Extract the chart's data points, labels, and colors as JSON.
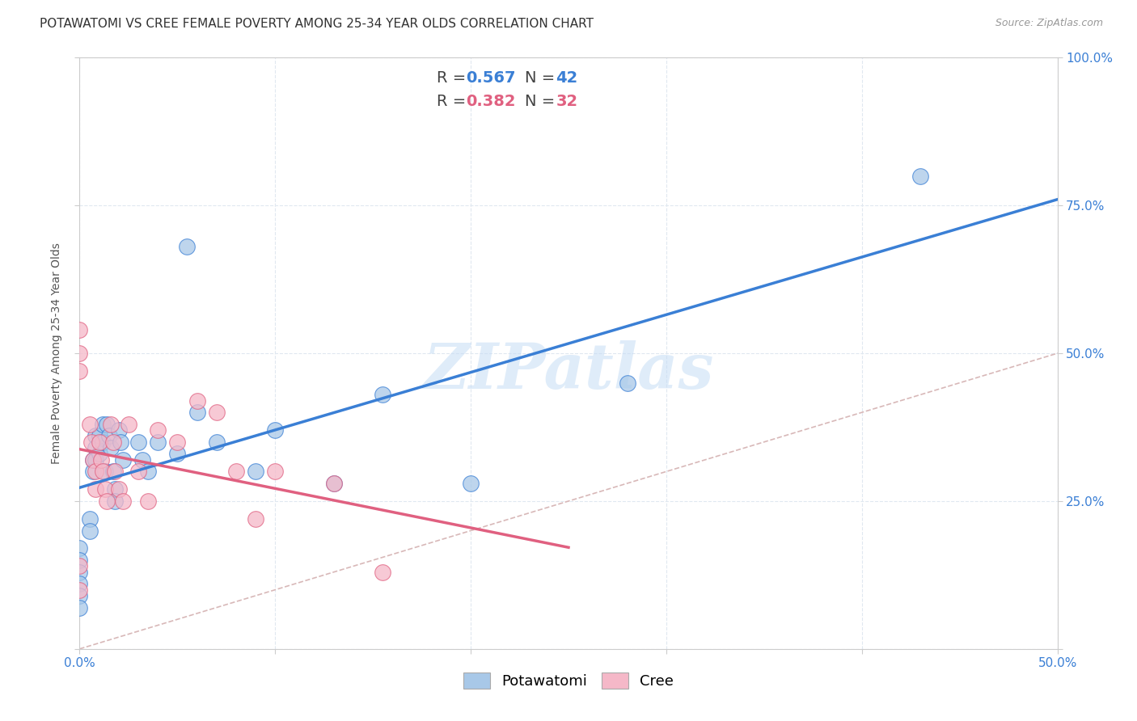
{
  "title": "POTAWATOMI VS CREE FEMALE POVERTY AMONG 25-34 YEAR OLDS CORRELATION CHART",
  "source": "Source: ZipAtlas.com",
  "ylabel": "Female Poverty Among 25-34 Year Olds",
  "xlim": [
    0.0,
    0.5
  ],
  "ylim": [
    0.0,
    1.0
  ],
  "xticks": [
    0.0,
    0.1,
    0.2,
    0.3,
    0.4,
    0.5
  ],
  "xticklabels": [
    "0.0%",
    "",
    "",
    "",
    "",
    "50.0%"
  ],
  "yticks": [
    0.0,
    0.25,
    0.5,
    0.75,
    1.0
  ],
  "yticklabels_right": [
    "",
    "25.0%",
    "50.0%",
    "75.0%",
    "100.0%"
  ],
  "potawatomi_R": 0.567,
  "potawatomi_N": 42,
  "cree_R": 0.382,
  "cree_N": 32,
  "potawatomi_color": "#a8c8e8",
  "cree_color": "#f5b8c8",
  "regression_potawatomi_color": "#3a7fd5",
  "regression_cree_color": "#e06080",
  "diagonal_color": "#d8b8b8",
  "watermark": "ZIPatlas",
  "potawatomi_x": [
    0.0,
    0.0,
    0.0,
    0.0,
    0.0,
    0.0,
    0.005,
    0.005,
    0.007,
    0.007,
    0.008,
    0.008,
    0.008,
    0.01,
    0.01,
    0.012,
    0.012,
    0.013,
    0.014,
    0.015,
    0.016,
    0.017,
    0.018,
    0.018,
    0.02,
    0.021,
    0.022,
    0.03,
    0.032,
    0.035,
    0.04,
    0.05,
    0.055,
    0.06,
    0.07,
    0.09,
    0.1,
    0.13,
    0.155,
    0.2,
    0.28,
    0.43
  ],
  "potawatomi_y": [
    0.17,
    0.15,
    0.13,
    0.11,
    0.09,
    0.07,
    0.22,
    0.2,
    0.32,
    0.3,
    0.36,
    0.34,
    0.32,
    0.36,
    0.33,
    0.38,
    0.35,
    0.3,
    0.38,
    0.36,
    0.34,
    0.3,
    0.27,
    0.25,
    0.37,
    0.35,
    0.32,
    0.35,
    0.32,
    0.3,
    0.35,
    0.33,
    0.68,
    0.4,
    0.35,
    0.3,
    0.37,
    0.28,
    0.43,
    0.28,
    0.45,
    0.8
  ],
  "cree_x": [
    0.0,
    0.0,
    0.0,
    0.0,
    0.0,
    0.005,
    0.006,
    0.007,
    0.008,
    0.008,
    0.01,
    0.011,
    0.012,
    0.013,
    0.014,
    0.016,
    0.017,
    0.018,
    0.02,
    0.022,
    0.025,
    0.03,
    0.035,
    0.04,
    0.05,
    0.06,
    0.07,
    0.08,
    0.09,
    0.1,
    0.13,
    0.155
  ],
  "cree_y": [
    0.54,
    0.5,
    0.47,
    0.14,
    0.1,
    0.38,
    0.35,
    0.32,
    0.3,
    0.27,
    0.35,
    0.32,
    0.3,
    0.27,
    0.25,
    0.38,
    0.35,
    0.3,
    0.27,
    0.25,
    0.38,
    0.3,
    0.25,
    0.37,
    0.35,
    0.42,
    0.4,
    0.3,
    0.22,
    0.3,
    0.28,
    0.13
  ],
  "background_color": "#ffffff",
  "grid_color": "#e0e8f0",
  "title_fontsize": 11,
  "axis_label_fontsize": 10,
  "tick_fontsize": 11,
  "legend_fontsize": 14
}
